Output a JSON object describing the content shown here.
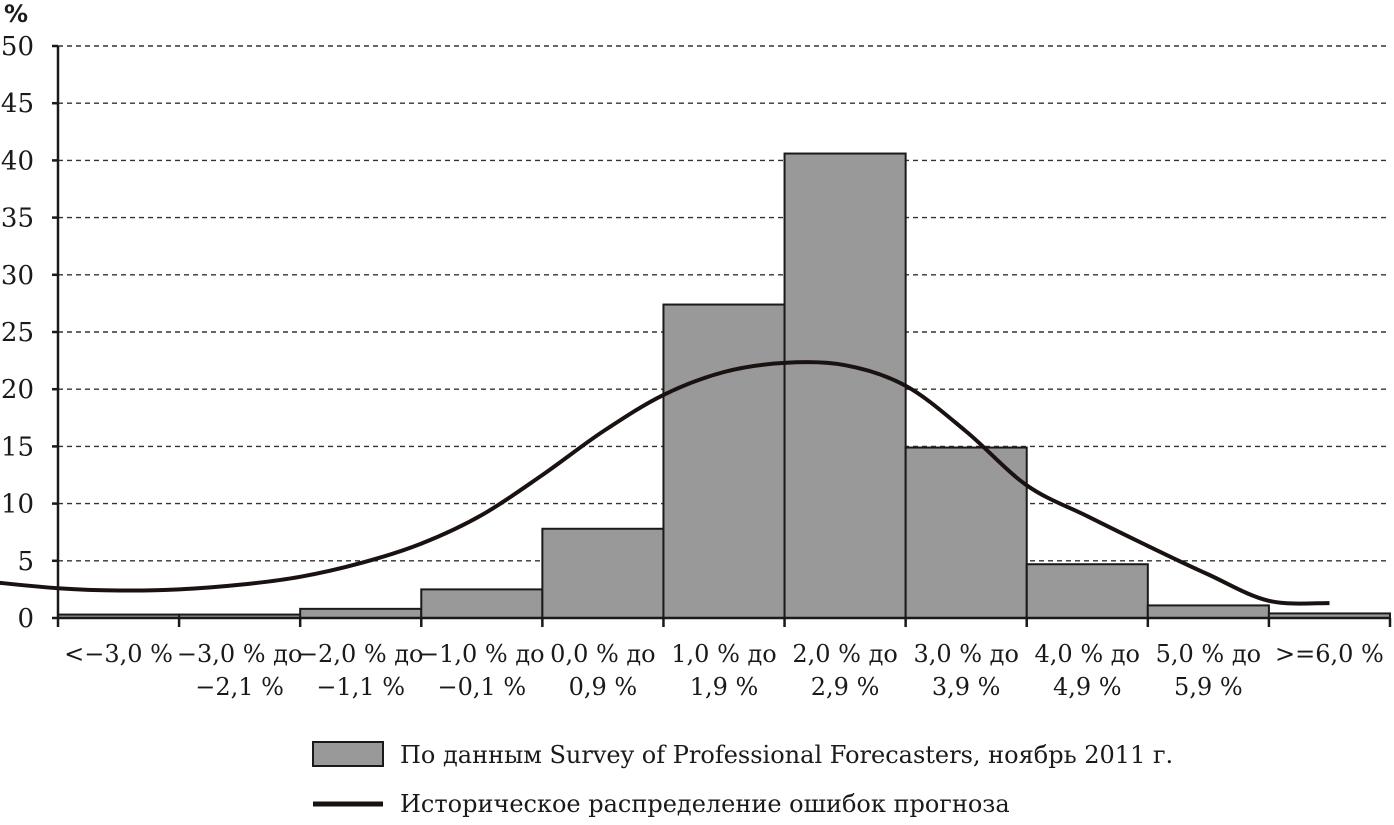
{
  "chart_data": {
    "type": "bar",
    "y_unit_label": "%",
    "ylim": [
      0,
      50
    ],
    "yticks": [
      0,
      5,
      10,
      15,
      20,
      25,
      30,
      35,
      40,
      45,
      50
    ],
    "grid": true,
    "categories": [
      [
        "<−3,0 %"
      ],
      [
        "−3,0 % до",
        "−2,1 %"
      ],
      [
        "−2,0 % до",
        "−1,1 %"
      ],
      [
        "−1,0 % до",
        "−0,1 %"
      ],
      [
        "0,0 % до",
        "0,9 %"
      ],
      [
        "1,0 % до",
        "1,9 %"
      ],
      [
        "2,0 % до",
        "2,9 %"
      ],
      [
        "3,0 % до",
        "3,9 %"
      ],
      [
        "4,0 % до",
        "4,9 %"
      ],
      [
        "5,0 % до",
        "5,9 %"
      ],
      [
        ">=6,0 %"
      ]
    ],
    "series": [
      {
        "name": "По данным Survey of Professional Forecasters, ноябрь 2011 г.",
        "type": "bar",
        "values": [
          0.3,
          0.3,
          0.8,
          2.5,
          7.8,
          27.4,
          40.6,
          14.9,
          4.7,
          1.1,
          0.4
        ]
      },
      {
        "name": "Историческое распределение ошибок прогноза",
        "type": "line",
        "x": [
          -0.6,
          0,
          0.5,
          1,
          1.5,
          2,
          2.5,
          3,
          3.5,
          4,
          4.5,
          5,
          5.5,
          6,
          6.5,
          7,
          7.5,
          8,
          8.5,
          9,
          9.5,
          10,
          10.5
        ],
        "values": [
          3.2,
          2.6,
          2.4,
          2.5,
          2.9,
          3.6,
          4.8,
          6.5,
          9.0,
          12.5,
          16.3,
          19.5,
          21.5,
          22.3,
          22.1,
          20.3,
          16.3,
          11.6,
          8.9,
          6.3,
          3.8,
          1.5,
          1.3
        ]
      }
    ],
    "legend": [
      {
        "label": "По данным Survey of Professional Forecasters, ноябрь 2011 г.",
        "swatch": "bar"
      },
      {
        "label": "Историческое распределение ошибок прогноза",
        "swatch": "line"
      }
    ],
    "colors": {
      "bar_fill": "#999999",
      "bar_stroke": "#1a1a1a",
      "line": "#1a1210",
      "grid": "#333333"
    }
  }
}
